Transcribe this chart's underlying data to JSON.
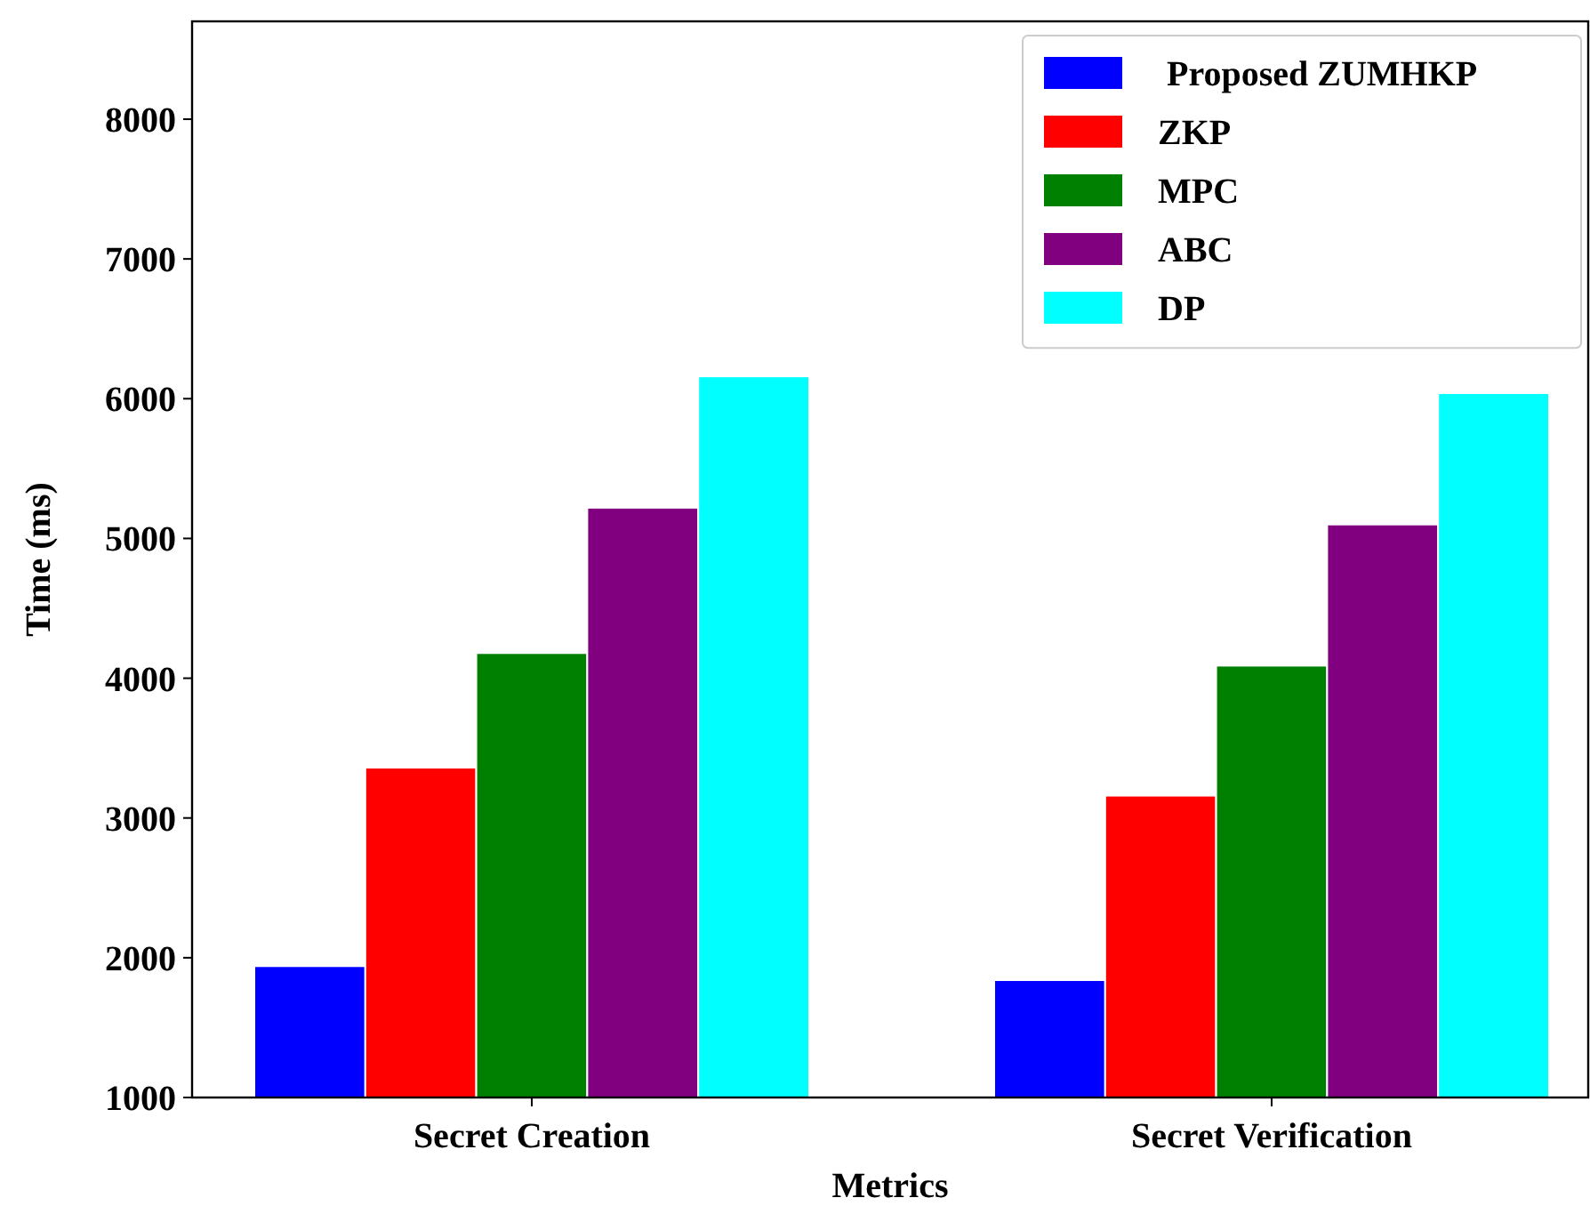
{
  "chart_data": {
    "type": "bar",
    "xlabel": "Metrics",
    "ylabel": "Time (ms)",
    "categories": [
      "Secret Creation",
      "Secret Verification"
    ],
    "ylim": [
      1000,
      8700
    ],
    "yticks": [
      1000,
      2000,
      3000,
      4000,
      5000,
      6000,
      7000,
      8000
    ],
    "legend": "top right",
    "grid": false,
    "series": [
      {
        "name": " Proposed ZUMHKP",
        "color": "#0000ff",
        "values": [
          1940,
          1840
        ]
      },
      {
        "name": "ZKP",
        "color": "#ff0000",
        "values": [
          3360,
          3160
        ]
      },
      {
        "name": "MPC",
        "color": "#008000",
        "values": [
          4180,
          4090
        ]
      },
      {
        "name": "ABC",
        "color": "#800080",
        "values": [
          5220,
          5100
        ]
      },
      {
        "name": "DP",
        "color": "#00ffff",
        "values": [
          6160,
          6040
        ]
      }
    ]
  }
}
